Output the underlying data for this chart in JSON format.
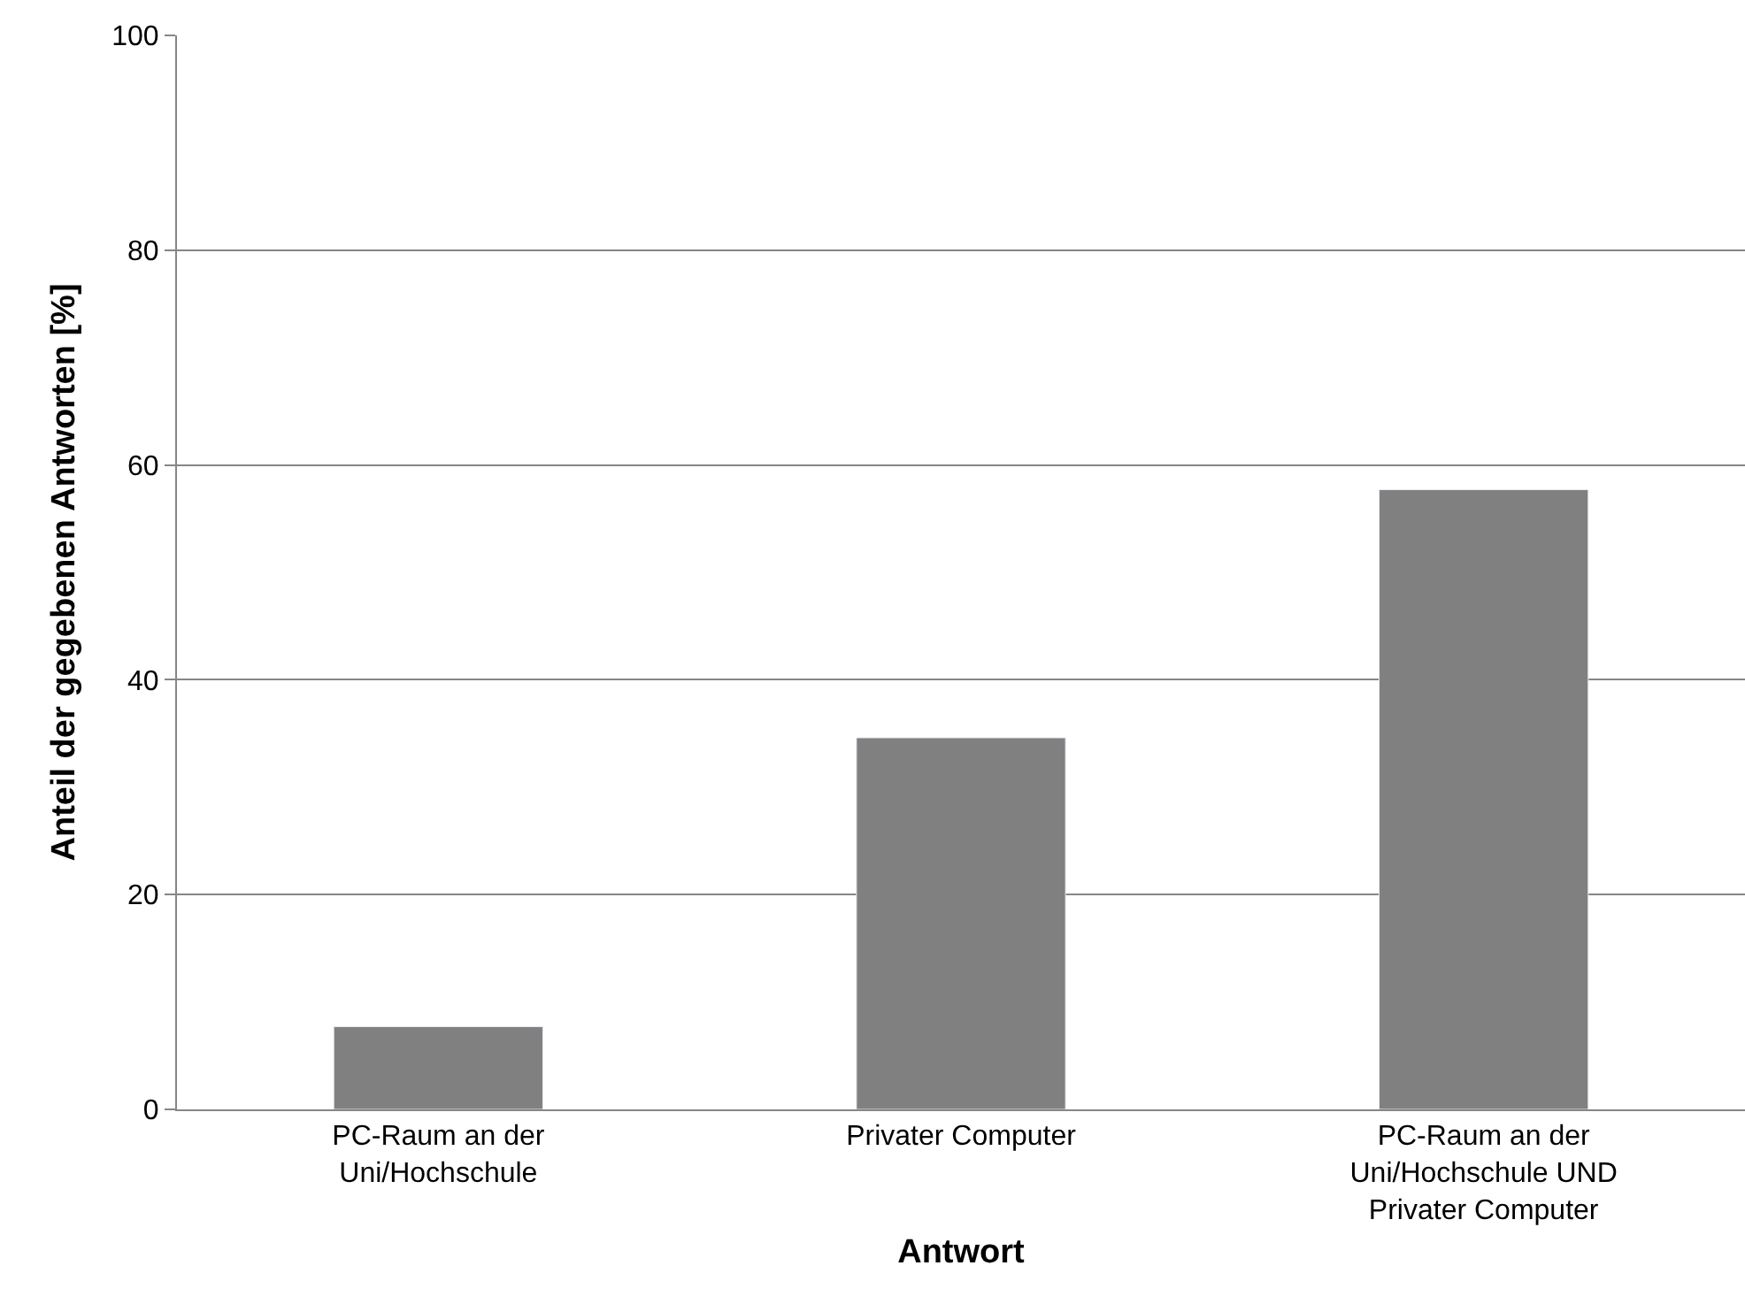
{
  "chart_data": {
    "type": "bar",
    "xlabel": "Antwort",
    "ylabel": "Anteil der gegebenen Antworten [%]",
    "categories": [
      "PC-Raum an der Uni/Hochschule",
      "Privater Computer",
      "PC-Raum an der Uni/Hochschule UND Privater Computer"
    ],
    "values": [
      7.7,
      34.6,
      57.7
    ],
    "color": "#808080",
    "ylim": [
      0,
      100
    ],
    "yticks": [
      0,
      20,
      40,
      60,
      80,
      100
    ],
    "grid": "y",
    "legend": false
  }
}
